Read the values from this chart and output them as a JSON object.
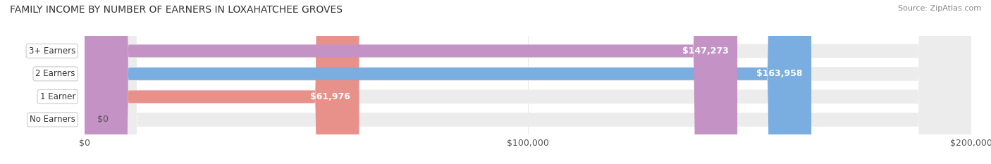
{
  "title": "FAMILY INCOME BY NUMBER OF EARNERS IN LOXAHATCHEE GROVES",
  "source": "Source: ZipAtlas.com",
  "categories": [
    "No Earners",
    "1 Earner",
    "2 Earners",
    "3+ Earners"
  ],
  "values": [
    0,
    61976,
    163958,
    147273
  ],
  "labels": [
    "$0",
    "$61,976",
    "$163,958",
    "$147,273"
  ],
  "bar_colors": [
    "#f5c89a",
    "#e8908a",
    "#7aade0",
    "#c492c4"
  ],
  "bar_edge_colors": [
    "#e8a870",
    "#d06060",
    "#5a8dc0",
    "#a870a8"
  ],
  "bg_colors": [
    "#f5f5f5",
    "#f5f5f5",
    "#f5f5f5",
    "#f5f5f5"
  ],
  "xlim": [
    0,
    200000
  ],
  "xtick_values": [
    0,
    100000,
    200000
  ],
  "xtick_labels": [
    "$0",
    "$100,000",
    "$200,000"
  ],
  "title_fontsize": 10,
  "source_fontsize": 8,
  "label_fontsize": 9,
  "tick_fontsize": 9,
  "category_fontsize": 8.5,
  "bar_height": 0.55,
  "background_color": "#ffffff",
  "label_inside_color": "#ffffff",
  "label_outside_color": "#555555"
}
